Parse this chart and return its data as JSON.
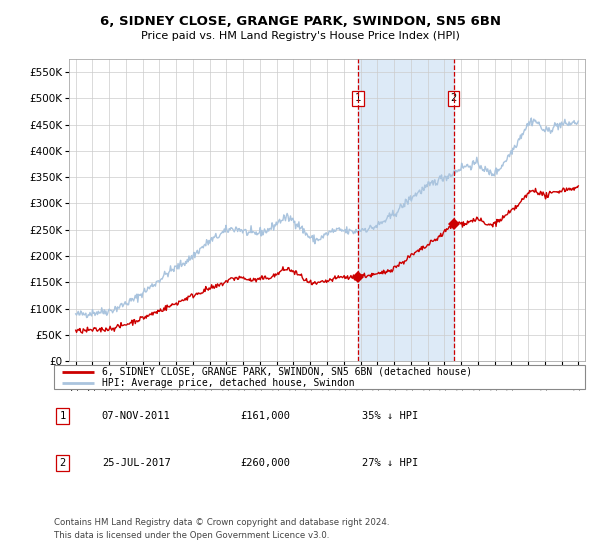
{
  "title": "6, SIDNEY CLOSE, GRANGE PARK, SWINDON, SN5 6BN",
  "subtitle": "Price paid vs. HM Land Registry's House Price Index (HPI)",
  "legend_line1": "6, SIDNEY CLOSE, GRANGE PARK, SWINDON, SN5 6BN (detached house)",
  "legend_line2": "HPI: Average price, detached house, Swindon",
  "footnote": "Contains HM Land Registry data © Crown copyright and database right 2024.\nThis data is licensed under the Open Government Licence v3.0.",
  "sale1_date": "07-NOV-2011",
  "sale1_price": 161000,
  "sale1_label": "35% ↓ HPI",
  "sale1_x": 2011.85,
  "sale2_date": "25-JUL-2017",
  "sale2_price": 260000,
  "sale2_label": "27% ↓ HPI",
  "sale2_x": 2017.56,
  "hpi_color": "#aac4de",
  "sale_color": "#cc0000",
  "shade_color": "#ddeaf7",
  "grid_color": "#cccccc",
  "ylim": [
    0,
    575000
  ],
  "xlim_start": 1994.6,
  "xlim_end": 2025.4
}
